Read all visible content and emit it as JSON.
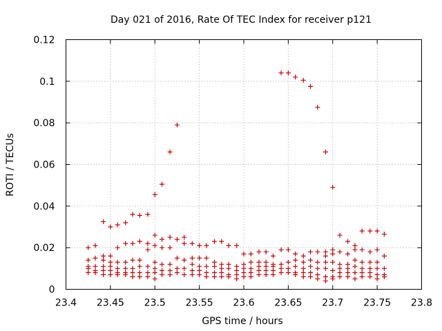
{
  "chart_data": {
    "type": "scatter",
    "title": "Day 021 of 2016, Rate Of TEC Index for receiver p121",
    "xlabel": "GPS time / hours",
    "ylabel": "ROTI / TECUs",
    "xlim": [
      23.4,
      23.8
    ],
    "ylim": [
      0,
      0.12
    ],
    "xticks": [
      23.4,
      23.45,
      23.5,
      23.55,
      23.6,
      23.65,
      23.7,
      23.75,
      23.8
    ],
    "xtick_labels": [
      "23.4",
      "23.45",
      "23.5",
      "23.55",
      "23.6",
      "23.65",
      "23.7",
      "23.75",
      "23.8"
    ],
    "yticks": [
      0,
      0.02,
      0.04,
      0.06,
      0.08,
      0.1,
      0.12
    ],
    "ytick_labels": [
      "0",
      "0.02",
      "0.04",
      "0.06",
      "0.08",
      "0.1",
      "0.12"
    ],
    "grid": true,
    "marker": "+",
    "color": "#cc0000",
    "series": [
      {
        "name": "ROTI",
        "x": [
          23.425,
          23.425,
          23.425,
          23.425,
          23.425,
          23.433,
          23.433,
          23.433,
          23.433,
          23.433,
          23.442,
          23.442,
          23.442,
          23.442,
          23.442,
          23.442,
          23.45,
          23.45,
          23.45,
          23.45,
          23.45,
          23.45,
          23.458,
          23.458,
          23.458,
          23.458,
          23.458,
          23.458,
          23.467,
          23.467,
          23.467,
          23.467,
          23.467,
          23.467,
          23.475,
          23.475,
          23.475,
          23.475,
          23.475,
          23.475,
          23.483,
          23.483,
          23.483,
          23.483,
          23.483,
          23.483,
          23.492,
          23.492,
          23.492,
          23.492,
          23.492,
          23.492,
          23.5,
          23.5,
          23.5,
          23.5,
          23.5,
          23.5,
          23.5,
          23.508,
          23.508,
          23.508,
          23.508,
          23.508,
          23.508,
          23.517,
          23.517,
          23.517,
          23.517,
          23.517,
          23.517,
          23.525,
          23.525,
          23.525,
          23.525,
          23.525,
          23.533,
          23.533,
          23.533,
          23.533,
          23.533,
          23.542,
          23.542,
          23.542,
          23.542,
          23.542,
          23.55,
          23.55,
          23.55,
          23.55,
          23.55,
          23.558,
          23.558,
          23.558,
          23.558,
          23.558,
          23.567,
          23.567,
          23.567,
          23.567,
          23.567,
          23.575,
          23.575,
          23.575,
          23.575,
          23.575,
          23.583,
          23.583,
          23.583,
          23.583,
          23.583,
          23.592,
          23.592,
          23.592,
          23.592,
          23.592,
          23.6,
          23.6,
          23.6,
          23.6,
          23.6,
          23.608,
          23.608,
          23.608,
          23.608,
          23.608,
          23.617,
          23.617,
          23.617,
          23.617,
          23.617,
          23.625,
          23.625,
          23.625,
          23.625,
          23.625,
          23.633,
          23.633,
          23.633,
          23.633,
          23.633,
          23.642,
          23.642,
          23.642,
          23.642,
          23.642,
          23.65,
          23.65,
          23.65,
          23.65,
          23.65,
          23.658,
          23.658,
          23.658,
          23.658,
          23.658,
          23.658,
          23.667,
          23.667,
          23.667,
          23.667,
          23.667,
          23.667,
          23.675,
          23.675,
          23.675,
          23.675,
          23.675,
          23.675,
          23.683,
          23.683,
          23.683,
          23.683,
          23.683,
          23.683,
          23.692,
          23.692,
          23.692,
          23.692,
          23.692,
          23.692,
          23.692,
          23.7,
          23.7,
          23.7,
          23.7,
          23.7,
          23.7,
          23.7,
          23.708,
          23.708,
          23.708,
          23.708,
          23.708,
          23.708,
          23.717,
          23.717,
          23.717,
          23.717,
          23.717,
          23.717,
          23.725,
          23.725,
          23.725,
          23.725,
          23.725,
          23.725,
          23.733,
          23.733,
          23.733,
          23.733,
          23.733,
          23.733,
          23.742,
          23.742,
          23.742,
          23.742,
          23.742,
          23.742,
          23.75,
          23.75,
          23.75,
          23.75,
          23.75,
          23.75,
          23.758,
          23.758,
          23.758,
          23.758,
          23.758
        ],
        "y": [
          0.02,
          0.014,
          0.011,
          0.01,
          0.008,
          0.021,
          0.015,
          0.011,
          0.009,
          0.008,
          0.0325,
          0.016,
          0.014,
          0.011,
          0.009,
          0.007,
          0.03,
          0.016,
          0.013,
          0.011,
          0.009,
          0.007,
          0.031,
          0.02,
          0.013,
          0.01,
          0.008,
          0.007,
          0.032,
          0.022,
          0.013,
          0.01,
          0.008,
          0.007,
          0.036,
          0.022,
          0.014,
          0.01,
          0.008,
          0.006,
          0.0355,
          0.023,
          0.014,
          0.011,
          0.008,
          0.006,
          0.036,
          0.022,
          0.019,
          0.011,
          0.008,
          0.006,
          0.0455,
          0.026,
          0.021,
          0.013,
          0.01,
          0.008,
          0.005,
          0.0505,
          0.024,
          0.02,
          0.012,
          0.009,
          0.007,
          0.066,
          0.025,
          0.02,
          0.012,
          0.009,
          0.007,
          0.079,
          0.024,
          0.015,
          0.01,
          0.008,
          0.025,
          0.022,
          0.014,
          0.01,
          0.007,
          0.022,
          0.015,
          0.012,
          0.009,
          0.007,
          0.021,
          0.015,
          0.011,
          0.009,
          0.007,
          0.021,
          0.015,
          0.011,
          0.008,
          0.006,
          0.023,
          0.013,
          0.011,
          0.008,
          0.006,
          0.023,
          0.012,
          0.01,
          0.008,
          0.006,
          0.021,
          0.012,
          0.01,
          0.007,
          0.006,
          0.021,
          0.011,
          0.009,
          0.007,
          0.005,
          0.017,
          0.012,
          0.01,
          0.008,
          0.006,
          0.017,
          0.013,
          0.01,
          0.008,
          0.006,
          0.018,
          0.013,
          0.011,
          0.009,
          0.007,
          0.018,
          0.013,
          0.011,
          0.009,
          0.007,
          0.016,
          0.012,
          0.011,
          0.009,
          0.007,
          0.104,
          0.019,
          0.012,
          0.01,
          0.008,
          0.104,
          0.019,
          0.013,
          0.01,
          0.008,
          0.102,
          0.017,
          0.014,
          0.011,
          0.008,
          0.007,
          0.1005,
          0.016,
          0.013,
          0.01,
          0.008,
          0.006,
          0.0975,
          0.018,
          0.014,
          0.011,
          0.008,
          0.006,
          0.0875,
          0.018,
          0.013,
          0.01,
          0.007,
          0.005,
          0.066,
          0.018,
          0.016,
          0.013,
          0.01,
          0.006,
          0.004,
          0.049,
          0.019,
          0.017,
          0.013,
          0.009,
          0.006,
          0.005,
          0.026,
          0.018,
          0.012,
          0.01,
          0.008,
          0.006,
          0.023,
          0.017,
          0.012,
          0.01,
          0.008,
          0.006,
          0.021,
          0.019,
          0.014,
          0.011,
          0.008,
          0.005,
          0.028,
          0.019,
          0.013,
          0.01,
          0.008,
          0.006,
          0.028,
          0.018,
          0.013,
          0.01,
          0.008,
          0.006,
          0.028,
          0.019,
          0.013,
          0.01,
          0.007,
          0.005,
          0.0265,
          0.016,
          0.01,
          0.007,
          0.006
        ]
      }
    ]
  }
}
